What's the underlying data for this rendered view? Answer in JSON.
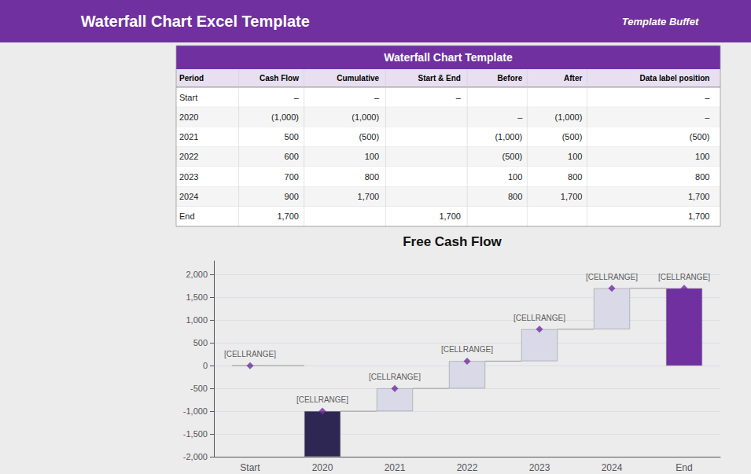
{
  "chart_data": [
    {
      "type": "table",
      "title": "Waterfall Chart Template",
      "annotations": [
        "Waterfall Chart Excel Template",
        "Template Buffet"
      ],
      "color": "#7030A0",
      "columns": [
        "Period",
        "Cash Flow",
        "Cumulative",
        "Start & End",
        "Before",
        "After",
        "Data label position"
      ],
      "rows": [
        [
          "Start",
          "–",
          "–",
          "–",
          "",
          "",
          "–"
        ],
        [
          "2020",
          "(1,000)",
          "(1,000)",
          "",
          "–",
          "(1,000)",
          "–"
        ],
        [
          "2021",
          "500",
          "(500)",
          "",
          "(1,000)",
          "(500)",
          "(500)"
        ],
        [
          "2022",
          "600",
          "100",
          "",
          "(500)",
          "100",
          "100"
        ],
        [
          "2023",
          "700",
          "800",
          "",
          "100",
          "800",
          "800"
        ],
        [
          "2024",
          "900",
          "1,700",
          "",
          "800",
          "1,700",
          "1,700"
        ],
        [
          "End",
          "1,700",
          "",
          "1,700",
          "",
          "",
          "1,700"
        ]
      ]
    },
    {
      "type": "waterfall",
      "title": "Free Cash Flow",
      "categories": [
        "Start",
        "2020",
        "2021",
        "2022",
        "2023",
        "2024",
        "End"
      ],
      "series": [
        {
          "type": "bar",
          "values": [
            0,
            -1000,
            500,
            600,
            700,
            900,
            1700
          ],
          "bottoms": [
            0,
            -1000,
            -1000,
            -500,
            100,
            800,
            0
          ],
          "colors": [
            "#7B7BAA",
            "#2E2653",
            "#D9D9E8",
            "#D9D9E8",
            "#D9D9E8",
            "#D9D9E8",
            "#7030A0"
          ]
        },
        {
          "type": "line",
          "line_style": "solid",
          "color": "#999999",
          "values": [
            0,
            -1000,
            -500,
            100,
            800,
            1700,
            null
          ]
        },
        {
          "type": "scatter",
          "marker": "diamond",
          "color": "#7030A0",
          "values": [
            0,
            -1000,
            -500,
            100,
            800,
            1700,
            1700
          ],
          "data_labels": true,
          "value_labels": [
            "[CELLRANGE]",
            "[CELLRANGE]",
            "[CELLRANGE]",
            "[CELLRANGE]",
            "[CELLRANGE]",
            "[CELLRANGE]",
            "[CELLRANGE]"
          ]
        }
      ],
      "ylim": [
        -2000,
        2300
      ],
      "yticks": [
        {
          "value": -2000,
          "label": "-2,000"
        },
        {
          "value": -1500,
          "label": "-1,500"
        },
        {
          "value": -1000,
          "label": "-1,000"
        },
        -500,
        0,
        500,
        {
          "value": 1000,
          "label": "1,000"
        },
        {
          "value": 1500,
          "label": "1,500"
        },
        {
          "value": 2000,
          "label": "2,000"
        }
      ],
      "grid": true
    }
  ]
}
